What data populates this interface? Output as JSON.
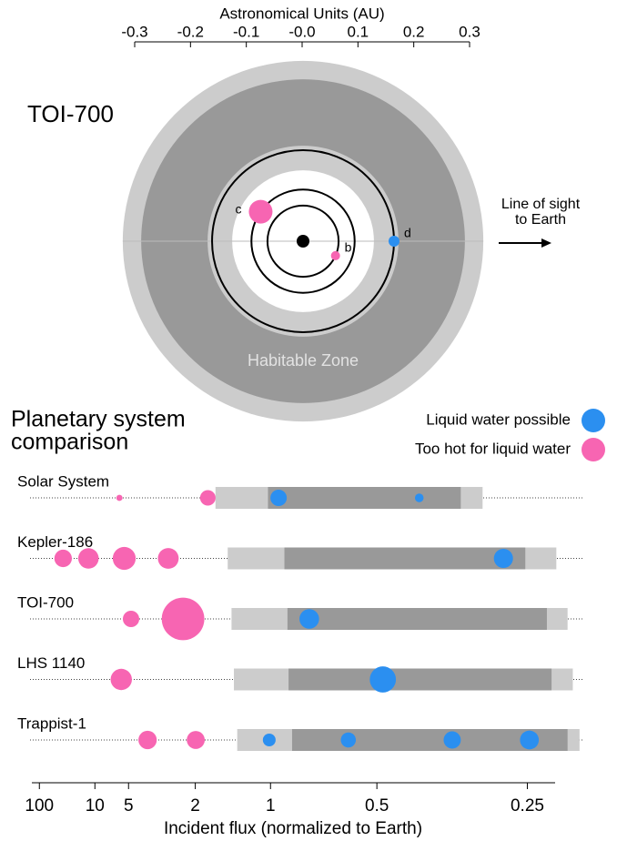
{
  "chart_data": [
    {
      "type": "orbit",
      "title": "TOI-700",
      "xlabel": "Astronomical Units (AU)",
      "xlim": [
        -0.3,
        0.3
      ],
      "xticks": [
        -0.3,
        -0.2,
        -0.1,
        {
          "value": 0,
          "label": "-0.0"
        },
        0.1,
        0.2,
        0.3
      ],
      "zone_label": "Habitable Zone",
      "zones": {
        "optimistic_outer": 0.323,
        "conservative_outer": 0.29,
        "conservative_inner": 0.171,
        "optimistic_inner": 0.127
      },
      "annotation": [
        "Line of sight",
        "to Earth"
      ],
      "planets": [
        {
          "name": "b",
          "orbit": 0.0637,
          "radius": 1.0,
          "color": "#f765b2"
        },
        {
          "name": "c",
          "orbit": 0.0925,
          "radius": 2.6,
          "color": "#f765b2"
        },
        {
          "name": "d",
          "orbit": 0.163,
          "radius": 1.2,
          "color": "#2b8ff0"
        }
      ]
    },
    {
      "type": "flux",
      "title": [
        "Planetary system",
        "comparison"
      ],
      "xlabel": "Incident flux (normalized to Earth)",
      "xscale": "inverse_sqrt",
      "xlim": [
        200,
        0.225
      ],
      "xticks": [
        100,
        10,
        5,
        2,
        1,
        0.5,
        0.25
      ],
      "legend": [
        {
          "name": "Liquid water possible",
          "color": "#2b8ff0"
        },
        {
          "name": "Too hot for liquid water",
          "color": "#f765b2"
        }
      ],
      "systems": [
        {
          "name": "Solar System",
          "zones": [
            1.62,
            1.02,
            0.33,
            0.3
          ],
          "planets": [
            {
              "flux": 5.9,
              "radius": 0.38,
              "color": "#f765b2"
            },
            {
              "flux": 1.75,
              "radius": 0.95,
              "color": "#f765b2"
            },
            {
              "flux": 0.94,
              "radius": 1.0,
              "color": "#2b8ff0"
            },
            {
              "flux": 0.401,
              "radius": 0.53,
              "color": "#2b8ff0"
            }
          ]
        },
        {
          "name": "Kepler-186",
          "zones": [
            1.44,
            0.9,
            0.252,
            0.224
          ],
          "planets": [
            {
              "flux": 27,
              "radius": 1.07,
              "color": "#f765b2"
            },
            {
              "flux": 11.8,
              "radius": 1.25,
              "color": "#f765b2"
            },
            {
              "flux": 5.4,
              "radius": 1.4,
              "color": "#f765b2"
            },
            {
              "flux": 2.76,
              "radius": 1.27,
              "color": "#f765b2"
            },
            {
              "flux": 0.275,
              "radius": 1.17,
              "color": "#2b8ff0"
            }
          ]
        },
        {
          "name": "TOI-700",
          "zones": [
            1.39,
            0.88,
            0.232,
            0.215
          ],
          "planets": [
            {
              "flux": 4.79,
              "radius": 1.0,
              "color": "#f765b2"
            },
            {
              "flux": 2.3,
              "radius": 2.6,
              "color": "#f765b2"
            },
            {
              "flux": 0.755,
              "radius": 1.2,
              "color": "#2b8ff0"
            }
          ]
        },
        {
          "name": "LHS 1140",
          "zones": [
            1.36,
            0.873,
            0.228,
            0.211
          ],
          "planets": [
            {
              "flux": 5.7,
              "radius": 1.3,
              "color": "#f765b2"
            },
            {
              "flux": 0.484,
              "radius": 1.6,
              "color": "#2b8ff0"
            }
          ]
        },
        {
          "name": "Trappist-1",
          "zones": [
            1.32,
            0.851,
            0.215,
            0.206
          ],
          "planets": [
            {
              "flux": 3.68,
              "radius": 1.12,
              "color": "#f765b2"
            },
            {
              "flux": 1.99,
              "radius": 1.1,
              "color": "#f765b2"
            },
            {
              "flux": 1.01,
              "radius": 0.78,
              "color": "#2b8ff0"
            },
            {
              "flux": 0.589,
              "radius": 0.92,
              "color": "#2b8ff0"
            },
            {
              "flux": 0.343,
              "radius": 1.05,
              "color": "#2b8ff0"
            },
            {
              "flux": 0.248,
              "radius": 1.15,
              "color": "#2b8ff0"
            }
          ]
        }
      ]
    }
  ]
}
